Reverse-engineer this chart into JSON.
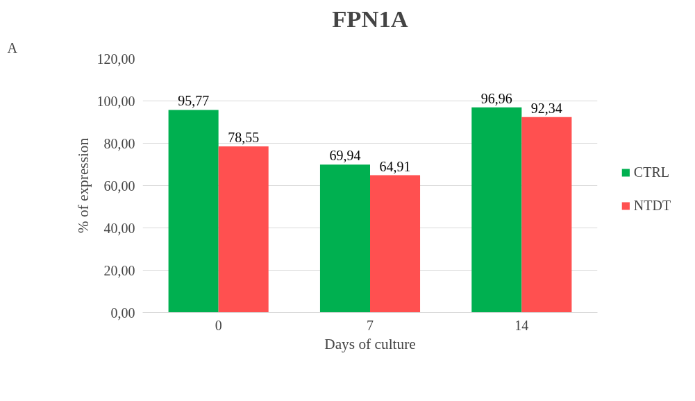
{
  "chart_data": {
    "type": "bar",
    "title": "FPN1A",
    "xlabel": "Days of culture",
    "ylabel": "% of expression",
    "annotations": [
      "A"
    ],
    "categories": [
      "0",
      "7",
      "14"
    ],
    "series": [
      {
        "name": "CTRL",
        "color": "#00b050",
        "values": [
          95.77,
          69.94,
          96.96
        ],
        "value_labels": [
          "95,77",
          "69,94",
          "96,96"
        ]
      },
      {
        "name": "NTDT",
        "color": "#ff5050",
        "values": [
          78.55,
          64.91,
          92.34
        ],
        "value_labels": [
          "78,55",
          "64,91",
          "92,34"
        ]
      }
    ],
    "ylim": [
      0,
      120
    ],
    "yticks": [
      {
        "value": 0,
        "label": "0,00"
      },
      {
        "value": 20,
        "label": "20,00"
      },
      {
        "value": 40,
        "label": "40,00"
      },
      {
        "value": 60,
        "label": "60,00"
      },
      {
        "value": 80,
        "label": "80,00"
      },
      {
        "value": 100,
        "label": "100,00"
      },
      {
        "value": 120,
        "label": "120,00"
      }
    ],
    "grid": "y",
    "legend": "right"
  }
}
